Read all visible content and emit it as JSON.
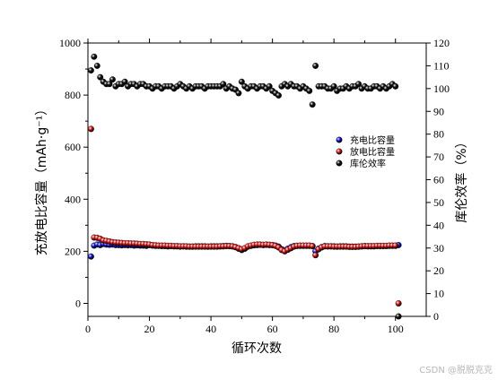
{
  "chart_data": {
    "type": "scatter",
    "xlabel": "循环次数",
    "ylabel_left": "充放电比容量（mAh·g⁻¹）",
    "ylabel_right": "库伦效率（%）",
    "xlim": [
      0,
      110
    ],
    "ylim_left": [
      -50,
      1000
    ],
    "ylim_right": [
      0,
      120
    ],
    "x_ticks": [
      0,
      20,
      40,
      60,
      80,
      100
    ],
    "y_left_ticks": [
      0,
      200,
      400,
      600,
      800,
      1000
    ],
    "y_right_ticks": [
      0,
      10,
      20,
      30,
      40,
      50,
      60,
      70,
      80,
      90,
      100,
      110,
      120
    ],
    "legend_position": "middle-right",
    "series": [
      {
        "name": "充电比容量",
        "axis": "left",
        "color": "#1515d8",
        "x": [
          1,
          2,
          3,
          4,
          5,
          6,
          7,
          8,
          9,
          10,
          11,
          12,
          13,
          14,
          15,
          16,
          17,
          18,
          19,
          20,
          21,
          22,
          23,
          24,
          25,
          26,
          27,
          28,
          29,
          30,
          31,
          32,
          33,
          34,
          35,
          36,
          37,
          38,
          39,
          40,
          41,
          42,
          43,
          44,
          45,
          46,
          47,
          48,
          49,
          50,
          51,
          52,
          53,
          54,
          55,
          56,
          57,
          58,
          59,
          60,
          61,
          62,
          63,
          64,
          65,
          66,
          67,
          68,
          69,
          70,
          71,
          72,
          73,
          74,
          75,
          76,
          77,
          78,
          79,
          80,
          81,
          82,
          83,
          84,
          85,
          86,
          87,
          88,
          89,
          90,
          91,
          92,
          93,
          94,
          95,
          96,
          97,
          98,
          99,
          100,
          101
        ],
        "y": [
          180,
          222,
          226,
          224,
          228,
          226,
          225,
          226,
          224,
          224,
          223,
          224,
          223,
          224,
          222,
          223,
          222,
          222,
          221,
          224,
          222,
          221,
          221,
          220,
          220,
          219,
          220,
          219,
          219,
          218,
          219,
          218,
          218,
          218,
          219,
          219,
          219,
          219,
          218,
          219,
          219,
          219,
          219,
          220,
          221,
          220,
          219,
          216,
          210,
          205,
          210,
          218,
          221,
          223,
          224,
          225,
          224,
          225,
          224,
          224,
          222,
          218,
          208,
          204,
          210,
          216,
          220,
          221,
          221,
          221,
          221,
          221,
          220,
          200,
          210,
          216,
          220,
          219,
          219,
          219,
          218,
          219,
          219,
          219,
          218,
          218,
          218,
          218,
          219,
          220,
          219,
          219,
          219,
          220,
          220,
          220,
          220,
          221,
          221,
          221,
          224
        ]
      },
      {
        "name": "放电比容量",
        "axis": "left",
        "color": "#dc1a1a",
        "x": [
          1,
          2,
          3,
          4,
          5,
          6,
          7,
          8,
          9,
          10,
          11,
          12,
          13,
          14,
          15,
          16,
          17,
          18,
          19,
          20,
          21,
          22,
          23,
          24,
          25,
          26,
          27,
          28,
          29,
          30,
          31,
          32,
          33,
          34,
          35,
          36,
          37,
          38,
          39,
          40,
          41,
          42,
          43,
          44,
          45,
          46,
          47,
          48,
          49,
          50,
          51,
          52,
          53,
          54,
          55,
          56,
          57,
          58,
          59,
          60,
          61,
          62,
          63,
          64,
          65,
          66,
          67,
          68,
          69,
          70,
          71,
          72,
          73,
          74,
          75,
          76,
          77,
          78,
          79,
          80,
          81,
          82,
          83,
          84,
          85,
          86,
          87,
          88,
          89,
          90,
          91,
          92,
          93,
          94,
          95,
          96,
          97,
          98,
          99,
          100,
          101
        ],
        "y": [
          670,
          253,
          252,
          248,
          242,
          240,
          238,
          235,
          234,
          233,
          232,
          231,
          231,
          230,
          230,
          229,
          228,
          228,
          227,
          226,
          224,
          223,
          222,
          222,
          222,
          221,
          221,
          220,
          220,
          219,
          219,
          219,
          218,
          218,
          218,
          218,
          218,
          218,
          218,
          218,
          218,
          218,
          219,
          219,
          220,
          220,
          219,
          216,
          212,
          208,
          212,
          219,
          222,
          225,
          226,
          226,
          225,
          226,
          225,
          224,
          221,
          215,
          205,
          200,
          206,
          212,
          218,
          221,
          222,
          222,
          222,
          222,
          220,
          185,
          208,
          215,
          219,
          219,
          219,
          218,
          218,
          218,
          218,
          218,
          217,
          217,
          217,
          218,
          219,
          220,
          220,
          220,
          220,
          221,
          221,
          221,
          221,
          222,
          222,
          222,
          0
        ]
      },
      {
        "name": "库伦效率",
        "axis": "right",
        "color": "#111111",
        "x": [
          1,
          2,
          3,
          4,
          5,
          6,
          7,
          8,
          9,
          10,
          11,
          12,
          13,
          14,
          15,
          16,
          17,
          18,
          19,
          20,
          21,
          22,
          23,
          24,
          25,
          26,
          27,
          28,
          29,
          30,
          31,
          32,
          33,
          34,
          35,
          36,
          37,
          38,
          39,
          40,
          41,
          42,
          43,
          44,
          45,
          46,
          47,
          48,
          49,
          50,
          51,
          52,
          53,
          54,
          55,
          56,
          57,
          58,
          59,
          60,
          61,
          62,
          63,
          64,
          65,
          66,
          67,
          68,
          69,
          70,
          71,
          72,
          73,
          74,
          75,
          76,
          77,
          78,
          79,
          80,
          81,
          82,
          83,
          84,
          85,
          86,
          87,
          88,
          89,
          90,
          91,
          92,
          93,
          94,
          95,
          96,
          97,
          98,
          99,
          100,
          101
        ],
        "y": [
          108,
          114,
          110,
          105,
          103,
          102,
          102,
          104,
          101,
          102,
          102,
          103,
          101,
          102,
          102,
          101,
          102,
          102,
          101,
          101,
          100,
          101,
          101,
          100,
          101,
          101,
          101,
          100,
          101,
          102,
          101,
          100,
          101,
          100,
          101,
          101,
          101,
          100,
          101,
          101,
          101,
          101,
          101,
          102,
          100,
          101,
          100,
          99.5,
          98,
          103,
          101,
          100,
          101,
          101,
          100,
          101,
          101,
          100,
          101,
          99,
          98,
          97,
          101,
          102,
          101,
          102,
          101,
          101,
          100,
          101,
          100,
          99,
          93,
          110,
          101,
          101,
          101,
          100,
          100,
          101,
          99,
          100,
          100,
          101,
          100,
          101,
          101,
          102,
          100,
          101,
          100,
          100,
          101,
          101,
          100,
          101,
          100,
          101,
          102,
          101,
          0
        ]
      }
    ]
  },
  "watermark": "CSDN @脱脱克克"
}
